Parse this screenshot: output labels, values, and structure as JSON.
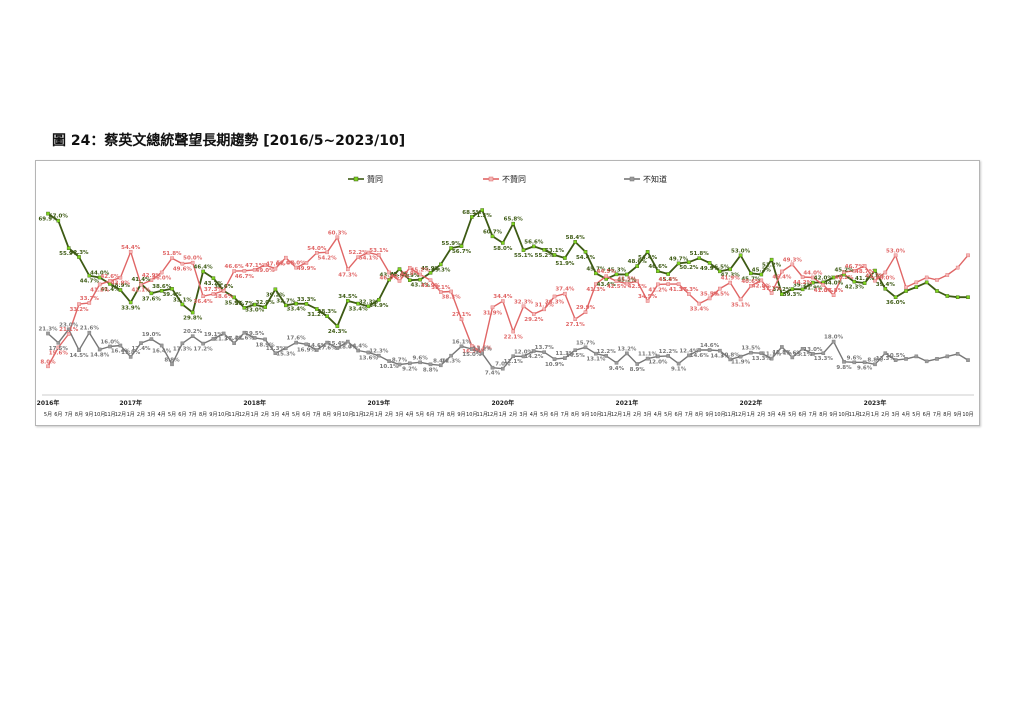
{
  "figure": {
    "title": "圖 24：蔡英文總統聲望長期趨勢 [2016/5~2023/10]"
  },
  "chart_data": {
    "type": "line",
    "title": "",
    "xlabel": "",
    "ylabel": "",
    "ylim": [
      0,
      75
    ],
    "grid": false,
    "legend_position": "top",
    "x": [
      "5月",
      "6月",
      "7月",
      "8月",
      "9月",
      "10月",
      "11月",
      "12月",
      "1月",
      "2月",
      "3月",
      "4月",
      "5月",
      "6月",
      "7月",
      "8月",
      "9月",
      "10月",
      "11月",
      "12月",
      "1月",
      "2月",
      "3月",
      "4月",
      "5月",
      "6月",
      "7月",
      "8月",
      "9月",
      "10月",
      "11月",
      "12月",
      "1月",
      "2月",
      "3月",
      "4月",
      "5月",
      "6月",
      "7月",
      "8月",
      "9月",
      "10月",
      "11月",
      "12月",
      "1月",
      "2月",
      "3月",
      "4月",
      "5月",
      "6月",
      "7月",
      "8月",
      "9月",
      "10月",
      "11月",
      "12月",
      "1月",
      "2月",
      "3月",
      "4月",
      "5月",
      "6月",
      "7月",
      "8月",
      "9月",
      "10月",
      "11月",
      "12月",
      "1月",
      "2月",
      "3月",
      "4月",
      "5月",
      "6月",
      "7月",
      "8月",
      "9月",
      "10月",
      "11月",
      "12月",
      "1月",
      "2月",
      "3月",
      "4月",
      "5月",
      "6月",
      "7月",
      "8月",
      "9月",
      "10月"
    ],
    "year_labels": [
      {
        "index": 0,
        "label": "2016年"
      },
      {
        "index": 8,
        "label": "2017年"
      },
      {
        "index": 20,
        "label": "2018年"
      },
      {
        "index": 32,
        "label": "2019年"
      },
      {
        "index": 44,
        "label": "2020年"
      },
      {
        "index": 56,
        "label": "2021年"
      },
      {
        "index": 68,
        "label": "2022年"
      },
      {
        "index": 80,
        "label": "2023年"
      }
    ],
    "series": [
      {
        "name": "贊同",
        "color": "#3d5a14",
        "marker_color": "#7ed321",
        "values": [
          69.9,
          67.0,
          55.9,
          52.3,
          44.7,
          44.0,
          41.4,
          38.9,
          33.9,
          41.4,
          37.6,
          38.6,
          39.4,
          33.1,
          29.8,
          46.4,
          43.7,
          38.6,
          35.9,
          31.7,
          33.0,
          32.0,
          39.2,
          32.7,
          33.4,
          33.3,
          31.2,
          28.3,
          24.3,
          34.5,
          33.4,
          32.3,
          34.9,
          43.1,
          47.4,
          42.9,
          43.1,
          45.9,
          49.3,
          55.9,
          56.7,
          68.5,
          71.3,
          60.7,
          58.0,
          65.8,
          55.1,
          56.6,
          55.2,
          53.1,
          51.9,
          58.4,
          54.4,
          45.7,
          43.4,
          45.3,
          45.2,
          48.6,
          54.4,
          46.6,
          45.4,
          49.7,
          50.2,
          51.8,
          49.9,
          46.5,
          47.3,
          53.0,
          45.7,
          45.2,
          51.2,
          37.2,
          39.3,
          39.2,
          41.9,
          42.0,
          44.0,
          45.2,
          42.3,
          41.7,
          46.8,
          39.4,
          36.0,
          38.5,
          40.1,
          42.0,
          38.5,
          36.5,
          36.0,
          36.0
        ],
        "labels": [
          "69.9%",
          "67.0%",
          "55.9%",
          "52.3%",
          "44.7%",
          "44.0%",
          "41.4%",
          "38.9%",
          "33.9%",
          "41.4%",
          "37.6%",
          "38.6%",
          "39.4%",
          "33.1%",
          "29.8%",
          "46.4%",
          "43.7%",
          "38.6%",
          "35.9%",
          "31.7%",
          "33.0%",
          "32.0%",
          "39.2%",
          "32.7%",
          "33.4%",
          "33.3%",
          "31.2%",
          "28.3%",
          "24.3%",
          "34.5%",
          "33.4%",
          "32.3%",
          "34.9%",
          "43.1%",
          "47.4%",
          "42.9%",
          "43.1%",
          "45.9%",
          "49.3%",
          "55.9%",
          "56.7%",
          "68.5%",
          "71.3%",
          "60.7%",
          "58.0%",
          "65.8%",
          "55.1%",
          "56.6%",
          "55.2%",
          "53.1%",
          "51.9%",
          "58.4%",
          "54.4%",
          "45.7%",
          "43.4%",
          "45.3%",
          "45.2%",
          "48.6%",
          "54.4%",
          "46.6%",
          "45.4%",
          "49.7%",
          "50.2%",
          "51.8%",
          "49.9%",
          "46.5%",
          "47.3%",
          "53.0%",
          "45.7%",
          "45.2%",
          "51.2%",
          "37.2%",
          "39.3%",
          "39.2%",
          "41.9%",
          "42.0%",
          "44.0%",
          "45.2%",
          "42.3%",
          "41.7%",
          "46.8%",
          "39.4%",
          "36.0%",
          "",
          "",
          "",
          "",
          "",
          "",
          ""
        ]
      },
      {
        "name": "不贊同",
        "color": "#e06666",
        "marker_color": "#f4b6b6",
        "values": [
          8.0,
          15.6,
          21.1,
          33.2,
          33.7,
          41.2,
          42.6,
          43.9,
          54.4,
          41.1,
          42.9,
          46.0,
          51.8,
          49.6,
          50.0,
          36.4,
          37.3,
          38.6,
          46.6,
          46.7,
          47.1,
          49.0,
          47.6,
          52.0,
          48.0,
          49.9,
          54.0,
          54.2,
          60.3,
          47.3,
          52.2,
          54.1,
          53.1,
          46.0,
          42.6,
          47.9,
          45.2,
          42.9,
          38.1,
          38.3,
          27.1,
          16.3,
          13.6,
          31.9,
          34.4,
          22.1,
          32.3,
          29.2,
          31.1,
          36.3,
          37.4,
          27.1,
          29.9,
          41.3,
          44.5,
          42.5,
          41.5,
          42.5,
          34.5,
          41.2,
          41.3,
          41.3,
          37.3,
          33.4,
          35.5,
          39.5,
          41.9,
          35.1,
          40.6,
          42.8,
          37.7,
          46.4,
          49.3,
          44.2,
          44.0,
          41.0,
          36.8,
          46.2,
          46.7,
          48.7,
          42.7,
          46.0,
          53.0,
          40.0,
          42.0,
          44.0,
          43.0,
          45.0,
          48.0,
          53.0
        ],
        "labels": [
          "8.0%",
          "15.6%",
          "21.1%",
          "33.2%",
          "33.7%",
          "41.2%",
          "42.6%",
          "43.9%",
          "54.4%",
          "41.1%",
          "42.9%",
          "46.0%",
          "51.8%",
          "49.6%",
          "50.0%",
          "36.4%",
          "37.3%",
          "38.6%",
          "46.6%",
          "46.7%",
          "47.1%",
          "49.0%",
          "47.6%",
          "52.0%",
          "48.0%",
          "49.9%",
          "54.0%",
          "54.2%",
          "60.3%",
          "47.3%",
          "52.2%",
          "54.1%",
          "53.1%",
          "46.0%",
          "42.6%",
          "47.9%",
          "45.2%",
          "42.9%",
          "38.1%",
          "38.3%",
          "27.1%",
          "16.3%",
          "13.6%",
          "31.9%",
          "34.4%",
          "22.1%",
          "32.3%",
          "29.2%",
          "31.1%",
          "36.3%",
          "37.4%",
          "27.1%",
          "29.9%",
          "41.3%",
          "44.5%",
          "42.5%",
          "41.5%",
          "42.5%",
          "34.5%",
          "41.2%",
          "41.3%",
          "41.3%",
          "37.3%",
          "33.4%",
          "35.5%",
          "39.5%",
          "41.9%",
          "35.1%",
          "40.6%",
          "42.8%",
          "37.7%",
          "46.4%",
          "49.3%",
          "44.2%",
          "44.0%",
          "41.0%",
          "36.8%",
          "46.2%",
          "46.7%",
          "48.7%",
          "42.7%",
          "46.0%",
          "53.0%",
          "",
          "",
          "",
          "",
          "",
          "",
          ""
        ]
      },
      {
        "name": "不知道",
        "color": "#777777",
        "marker_color": "#9a9a9a",
        "values": [
          21.3,
          17.5,
          23.0,
          14.5,
          21.6,
          14.8,
          16.0,
          16.4,
          11.8,
          17.4,
          19.0,
          16.4,
          8.8,
          17.3,
          20.2,
          17.2,
          19.1,
          21.3,
          17.4,
          21.6,
          19.5,
          18.9,
          13.3,
          15.3,
          17.6,
          16.9,
          14.6,
          17.6,
          15.4,
          18.0,
          14.4,
          13.6,
          12.3,
          10.1,
          8.7,
          9.2,
          9.6,
          8.8,
          8.4,
          12.3,
          16.1,
          15.0,
          13.2,
          7.4,
          7.0,
          12.1,
          12.0,
          14.2,
          13.7,
          10.9,
          11.3,
          14.5,
          15.7,
          13.1,
          12.2,
          9.4,
          13.2,
          8.9,
          11.1,
          12.0,
          12.2,
          9.1,
          12.4,
          14.6,
          14.6,
          14.3,
          10.8,
          11.9,
          13.5,
          13.3,
          11.1,
          15.8,
          11.6,
          15.1,
          13.0,
          13.3,
          18.0,
          9.8,
          9.6,
          9.6,
          8.8,
          13.3,
          10.5,
          11.0,
          12.0,
          10.0,
          11.0,
          12.0,
          13.0,
          10.5
        ],
        "labels": [
          "21.3%",
          "17.5%",
          "23.0%",
          "14.5%",
          "21.6%",
          "14.8%",
          "16.0%",
          "16.4%",
          "11.8%",
          "17.4%",
          "19.0%",
          "16.4%",
          "8.8%",
          "17.3%",
          "20.2%",
          "17.2%",
          "19.1%",
          "21.3%",
          "17.4%",
          "21.6%",
          "19.5%",
          "18.9%",
          "13.3%",
          "15.3%",
          "17.6%",
          "16.9%",
          "14.6%",
          "17.6%",
          "15.4%",
          "18.0%",
          "14.4%",
          "13.6%",
          "12.3%",
          "10.1%",
          "8.7%",
          "9.2%",
          "9.6%",
          "8.8%",
          "8.4%",
          "12.3%",
          "16.1%",
          "15.0%",
          "13.2%",
          "7.4%",
          "7.0%",
          "12.1%",
          "12.0%",
          "14.2%",
          "13.7%",
          "10.9%",
          "11.3%",
          "14.5%",
          "15.7%",
          "13.1%",
          "12.2%",
          "9.4%",
          "13.2%",
          "8.9%",
          "11.1%",
          "12.0%",
          "12.2%",
          "9.1%",
          "12.4%",
          "14.6%",
          "14.6%",
          "14.3%",
          "10.8%",
          "11.9%",
          "13.5%",
          "13.3%",
          "11.1%",
          "15.8%",
          "11.6%",
          "15.1%",
          "13.0%",
          "13.3%",
          "18.0%",
          "9.8%",
          "9.6%",
          "9.6%",
          "8.8%",
          "13.3%",
          "10.5%",
          "",
          "",
          "",
          "",
          "",
          "",
          ""
        ]
      }
    ]
  }
}
